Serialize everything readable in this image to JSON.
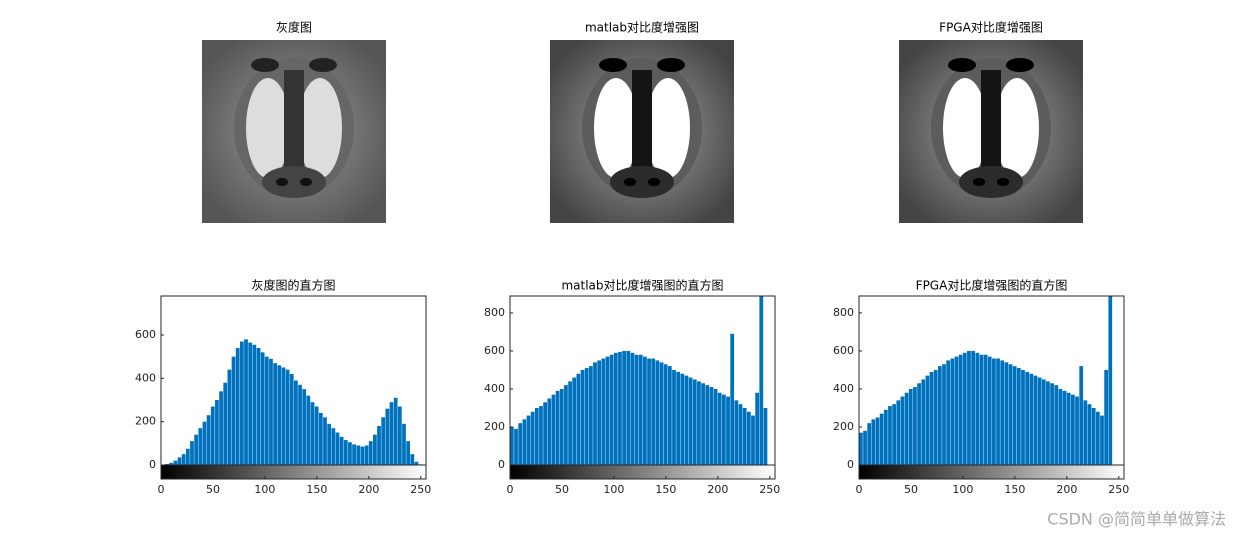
{
  "images": [
    {
      "title": "灰度图"
    },
    {
      "title": "matlab对比度增强图"
    },
    {
      "title": "FPGA对比度增强图"
    }
  ],
  "watermark": "CSDN @简简单单做算法",
  "chart_data": [
    {
      "type": "histogram",
      "title": "灰度图的直方图",
      "color": "#0072bd",
      "bins": [
        0,
        4,
        8,
        12,
        16,
        20,
        24,
        28,
        32,
        36,
        40,
        44,
        48,
        52,
        56,
        60,
        64,
        68,
        72,
        76,
        80,
        84,
        88,
        92,
        96,
        100,
        104,
        108,
        112,
        116,
        120,
        124,
        128,
        132,
        136,
        140,
        144,
        148,
        152,
        156,
        160,
        164,
        168,
        172,
        176,
        180,
        184,
        188,
        192,
        196,
        200,
        204,
        208,
        212,
        216,
        220,
        224,
        228,
        232,
        236,
        240,
        244,
        248,
        252,
        256
      ],
      "values": [
        2,
        5,
        10,
        20,
        35,
        50,
        75,
        110,
        140,
        170,
        200,
        230,
        270,
        300,
        340,
        380,
        440,
        500,
        540,
        570,
        580,
        565,
        555,
        540,
        520,
        500,
        490,
        470,
        460,
        450,
        440,
        420,
        390,
        370,
        350,
        320,
        290,
        270,
        240,
        220,
        190,
        170,
        150,
        130,
        115,
        105,
        95,
        90,
        85,
        90,
        110,
        140,
        180,
        220,
        260,
        290,
        310,
        270,
        190,
        110,
        50,
        15,
        3,
        0
      ],
      "xlim": [
        0,
        255
      ],
      "ylim": [
        0,
        780
      ],
      "xticks": [
        0,
        50,
        100,
        150,
        200,
        250
      ],
      "yticks": [
        0,
        200,
        400,
        600
      ]
    },
    {
      "type": "histogram",
      "title": "matlab对比度增强图的直方图",
      "color": "#0072bd",
      "bins": [
        0,
        4,
        8,
        12,
        16,
        20,
        24,
        28,
        32,
        36,
        40,
        44,
        48,
        52,
        56,
        60,
        64,
        68,
        72,
        76,
        80,
        84,
        88,
        92,
        96,
        100,
        104,
        108,
        112,
        116,
        120,
        124,
        128,
        132,
        136,
        140,
        144,
        148,
        152,
        156,
        160,
        164,
        168,
        172,
        176,
        180,
        184,
        188,
        192,
        196,
        200,
        204,
        208,
        212,
        216,
        220,
        224,
        228,
        232,
        236,
        240,
        244,
        248,
        252,
        256
      ],
      "values": [
        200,
        190,
        220,
        240,
        260,
        280,
        300,
        310,
        330,
        350,
        370,
        390,
        400,
        420,
        440,
        460,
        480,
        500,
        510,
        520,
        540,
        550,
        560,
        570,
        580,
        590,
        595,
        600,
        600,
        590,
        580,
        580,
        570,
        560,
        560,
        550,
        540,
        530,
        520,
        500,
        490,
        480,
        470,
        460,
        450,
        440,
        430,
        420,
        410,
        400,
        380,
        370,
        360,
        690,
        340,
        320,
        300,
        280,
        260,
        380,
        889,
        300,
        0,
        0
      ],
      "xlim": [
        0,
        255
      ],
      "ylim": [
        0,
        889
      ],
      "xticks": [
        0,
        50,
        100,
        150,
        200,
        250
      ],
      "yticks": [
        0,
        200,
        400,
        600,
        800
      ]
    },
    {
      "type": "histogram",
      "title": "FPGA对比度增强图的直方图",
      "color": "#0072bd",
      "bins": [
        0,
        4,
        8,
        12,
        16,
        20,
        24,
        28,
        32,
        36,
        40,
        44,
        48,
        52,
        56,
        60,
        64,
        68,
        72,
        76,
        80,
        84,
        88,
        92,
        96,
        100,
        104,
        108,
        112,
        116,
        120,
        124,
        128,
        132,
        136,
        140,
        144,
        148,
        152,
        156,
        160,
        164,
        168,
        172,
        176,
        180,
        184,
        188,
        192,
        196,
        200,
        204,
        208,
        212,
        216,
        220,
        224,
        228,
        232,
        236,
        240,
        244,
        248,
        252,
        256
      ],
      "values": [
        170,
        180,
        220,
        240,
        250,
        270,
        290,
        310,
        320,
        340,
        360,
        380,
        400,
        410,
        430,
        450,
        470,
        490,
        500,
        520,
        530,
        550,
        560,
        570,
        580,
        590,
        600,
        600,
        590,
        580,
        580,
        570,
        560,
        560,
        550,
        540,
        530,
        520,
        510,
        500,
        490,
        480,
        470,
        460,
        450,
        440,
        430,
        420,
        400,
        390,
        380,
        370,
        360,
        520,
        340,
        320,
        300,
        280,
        260,
        500,
        889,
        0,
        0,
        0
      ],
      "xlim": [
        0,
        255
      ],
      "ylim": [
        0,
        889
      ],
      "xticks": [
        0,
        50,
        100,
        150,
        200,
        250
      ],
      "yticks": [
        0,
        200,
        400,
        600,
        800
      ]
    }
  ]
}
